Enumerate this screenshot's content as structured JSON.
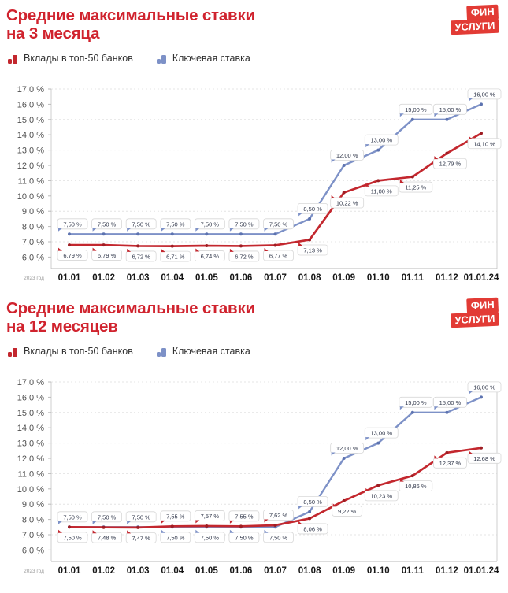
{
  "brand": {
    "logo_line1": "ФИН",
    "logo_line2": "УСЛУГИ"
  },
  "legend": {
    "deposits_label": "Вклады в топ-50 банков",
    "key_rate_label": "Ключевая ставка"
  },
  "colors": {
    "title_red": "#d0232e",
    "logo_red": "#e23b35",
    "deposits": "#c3272e",
    "deposits_dot": "#9f1d23",
    "key_rate": "#7d91c7",
    "key_rate_dot": "#5d73b0",
    "grid": "#e4e4e4",
    "axis": "#cfcfcf"
  },
  "chart_data": [
    {
      "type": "line",
      "title": "Средние максимальные ставки на 3 месяца",
      "title_lines": [
        "Средние максимальные ставки",
        "на 3 месяца"
      ],
      "categories": [
        "01.01",
        "01.02",
        "01.03",
        "01.04",
        "01.05",
        "01.06",
        "01.07",
        "01.08",
        "01.09",
        "01.10",
        "01.11",
        "01.12",
        "01.01.24"
      ],
      "xlabel_note": "2023 год",
      "ylim": [
        6,
        17
      ],
      "ytick_step": 1,
      "yaxis_format": "0,0 %",
      "grid": "dashed horizontal gridlines at odd percent values",
      "legend_position": "top-left",
      "data_labels": "every point, format 0,00 %",
      "series": [
        {
          "name": "Вклады в топ-50 банков",
          "color": "#c3272e",
          "values": [
            6.79,
            6.79,
            6.72,
            6.71,
            6.74,
            6.72,
            6.77,
            7.13,
            10.22,
            11.0,
            11.25,
            12.79,
            14.1
          ]
        },
        {
          "name": "Ключевая ставка",
          "color": "#7d91c7",
          "values": [
            7.5,
            7.5,
            7.5,
            7.5,
            7.5,
            7.5,
            7.5,
            8.5,
            12.0,
            13.0,
            15.0,
            15.0,
            16.0
          ]
        }
      ]
    },
    {
      "type": "line",
      "title": "Средние максимальные ставки на 12 месяцев",
      "title_lines": [
        "Средние максимальные ставки",
        "на 12 месяцев"
      ],
      "categories": [
        "01.01",
        "01.02",
        "01.03",
        "01.04",
        "01.05",
        "01.06",
        "01.07",
        "01.08",
        "01.09",
        "01.10",
        "01.11",
        "01.12",
        "01.01.24"
      ],
      "xlabel_note": "2023 год",
      "ylim": [
        6,
        17
      ],
      "ytick_step": 1,
      "yaxis_format": "0,0 %",
      "grid": "dashed horizontal gridlines at odd percent values",
      "legend_position": "top-left",
      "data_labels": "every point, format 0,00 %",
      "series": [
        {
          "name": "Вклады в топ-50 банков",
          "color": "#c3272e",
          "values": [
            7.5,
            7.48,
            7.47,
            7.55,
            7.57,
            7.55,
            7.62,
            8.06,
            9.22,
            10.23,
            10.86,
            12.37,
            12.68
          ]
        },
        {
          "name": "Ключевая ставка",
          "color": "#7d91c7",
          "values": [
            7.5,
            7.5,
            7.5,
            7.5,
            7.5,
            7.5,
            7.5,
            8.5,
            12.0,
            13.0,
            15.0,
            15.0,
            16.0
          ]
        }
      ]
    }
  ]
}
